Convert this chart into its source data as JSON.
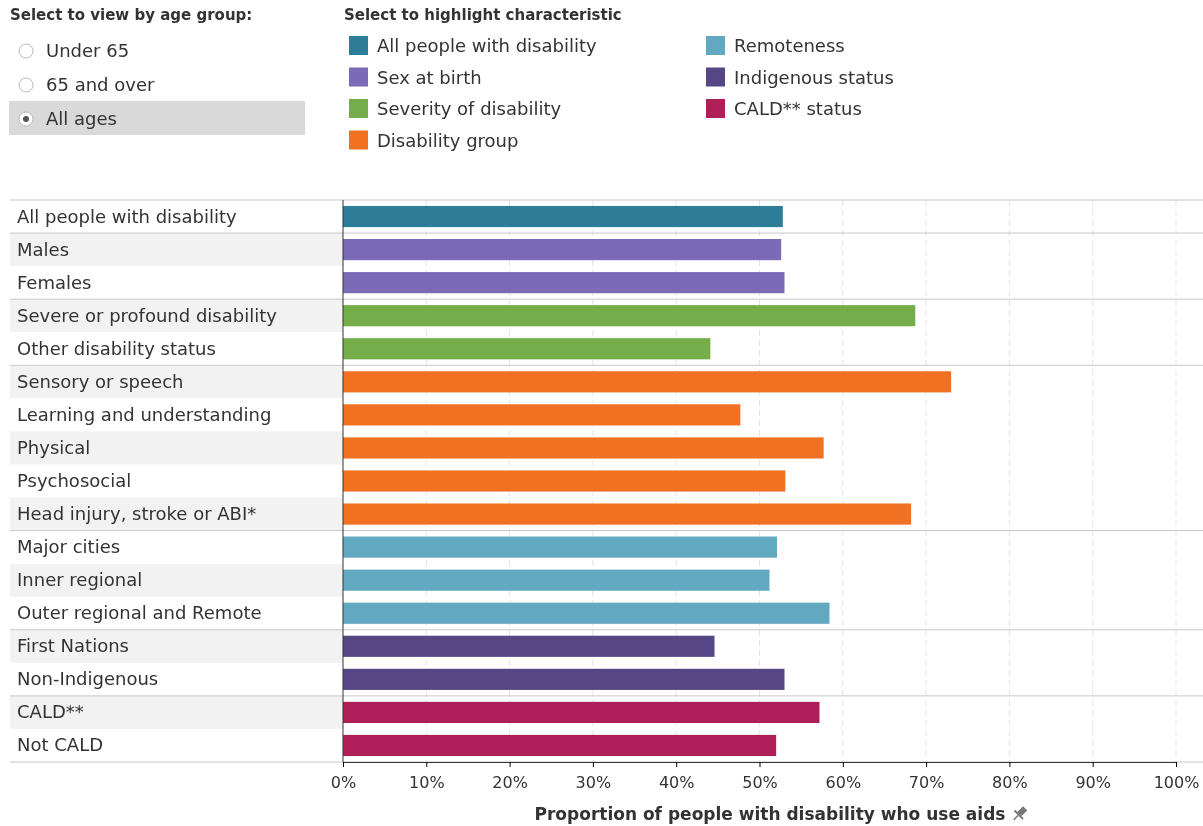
{
  "chart_data": {
    "type": "bar",
    "orientation": "horizontal",
    "xlabel": "Proportion of people with disability who use aids",
    "legend_title": "Select to highlight characteristic",
    "legend": "top",
    "annotations": [
      "Select to view by age group:",
      "Under 65",
      "65 and over",
      "All ages"
    ],
    "categories": [
      "All people with disability",
      "Males",
      "Females",
      "Severe or profound disability",
      "Other disability status",
      "Sensory or speech",
      "Learning and understanding",
      "Physical",
      "Psychosocial",
      "Head injury, stroke or ABI*",
      "Major cities",
      "Inner regional",
      "Outer regional and Remote",
      "First Nations",
      "Non-Indigenous",
      "CALD**",
      "Not CALD"
    ],
    "series": [
      {
        "name": "All people with disability",
        "color": "#2e7d98",
        "values": [
          52.8,
          null,
          null,
          null,
          null,
          null,
          null,
          null,
          null,
          null,
          null,
          null,
          null,
          null,
          null,
          null,
          null
        ]
      },
      {
        "name": "Sex at birth",
        "color": "#7b6ab5",
        "values": [
          null,
          52.6,
          53.0,
          null,
          null,
          null,
          null,
          null,
          null,
          null,
          null,
          null,
          null,
          null,
          null,
          null,
          null
        ]
      },
      {
        "name": "Severity of disability",
        "color": "#75ad4a",
        "values": [
          null,
          null,
          null,
          68.7,
          44.1,
          null,
          null,
          null,
          null,
          null,
          null,
          null,
          null,
          null,
          null,
          null,
          null
        ]
      },
      {
        "name": "Disability group",
        "color": "#f27022",
        "values": [
          null,
          null,
          null,
          null,
          null,
          73.0,
          47.7,
          57.7,
          53.1,
          68.2,
          null,
          null,
          null,
          null,
          null,
          null,
          null
        ]
      },
      {
        "name": "Remoteness",
        "color": "#62a8c0",
        "values": [
          null,
          null,
          null,
          null,
          null,
          null,
          null,
          null,
          null,
          null,
          52.1,
          51.2,
          58.4,
          null,
          null,
          null,
          null
        ]
      },
      {
        "name": "Indigenous status",
        "color": "#574685",
        "values": [
          null,
          null,
          null,
          null,
          null,
          null,
          null,
          null,
          null,
          null,
          null,
          null,
          null,
          44.6,
          53.0,
          null,
          null
        ]
      },
      {
        "name": "CALD** status",
        "color": "#ae1f57",
        "values": [
          null,
          null,
          null,
          null,
          null,
          null,
          null,
          null,
          null,
          null,
          null,
          null,
          null,
          null,
          null,
          57.2,
          52.0
        ]
      }
    ],
    "xlim": [
      0,
      100
    ],
    "xticks": [
      {
        "value": 0,
        "label": "0%"
      },
      {
        "value": 10,
        "label": "10%"
      },
      {
        "value": 20,
        "label": "20%"
      },
      {
        "value": 30,
        "label": "30%"
      },
      {
        "value": 40,
        "label": "40%"
      },
      {
        "value": 50,
        "label": "50%"
      },
      {
        "value": 60,
        "label": "60%"
      },
      {
        "value": 70,
        "label": "70%"
      },
      {
        "value": 80,
        "label": "80%"
      },
      {
        "value": 90,
        "label": "90%"
      },
      {
        "value": 100,
        "label": "100%"
      }
    ],
    "grid": "x"
  }
}
